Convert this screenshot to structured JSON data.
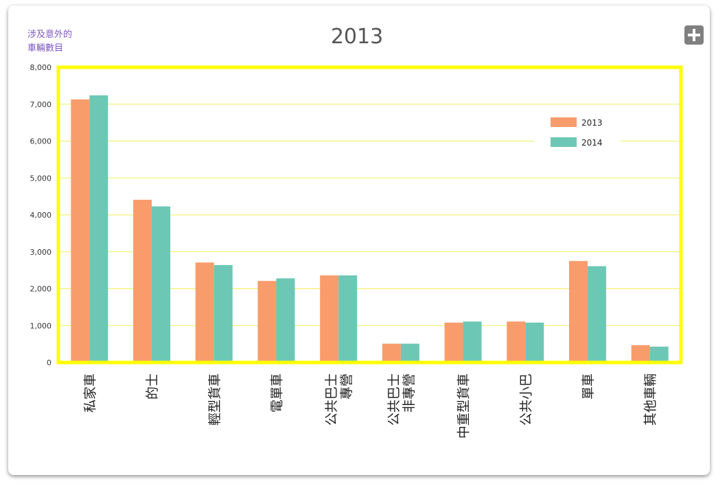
{
  "chart_data": {
    "type": "bar",
    "title": "2013",
    "ylabel_lines": [
      "涉及意外的",
      "車輛數目"
    ],
    "xlabel": "",
    "ylim": [
      0,
      8000
    ],
    "yticks": [
      "0",
      "1,000",
      "2,000",
      "3,000",
      "4,000",
      "5,000",
      "6,000",
      "7,000",
      "8,000"
    ],
    "grid": true,
    "legend_position": "top-right",
    "categories": [
      [
        "私家車"
      ],
      [
        "的士"
      ],
      [
        "輕型貨車"
      ],
      [
        "電單車"
      ],
      [
        "專營",
        "公共巴士"
      ],
      [
        "非專營",
        "公共巴士"
      ],
      [
        "中重型貨車"
      ],
      [
        "公共小巴"
      ],
      [
        "單車"
      ],
      [
        "其他車輛"
      ]
    ],
    "series": [
      {
        "name": "2013",
        "color": "#f89c6c",
        "values": [
          7130,
          4410,
          2710,
          2210,
          2360,
          510,
          1080,
          1110,
          2750,
          470
        ]
      },
      {
        "name": "2014",
        "color": "#6dc7b5",
        "values": [
          7240,
          4230,
          2640,
          2280,
          2360,
          510,
          1110,
          1080,
          2610,
          430
        ]
      }
    ]
  },
  "colors": {
    "plot_border": "#ffff00",
    "gridline": "#f2ef5a",
    "title": "#555555",
    "ylabel": "#7e57c2"
  },
  "controls": {
    "expand_icon": "plus-icon"
  }
}
